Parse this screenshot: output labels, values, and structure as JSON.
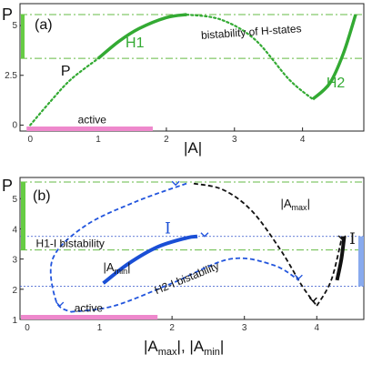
{
  "chart_data": [
    {
      "type": "line",
      "panel_label": "(a)",
      "ylabel": "P",
      "xlabel": "|A|",
      "xlim": [
        -0.15,
        4.9
      ],
      "ylim": [
        -0.3,
        6.1
      ],
      "xticks": [
        "0",
        "1",
        "2",
        "3",
        "4"
      ],
      "yticks": [
        "0",
        "2.5",
        "5"
      ],
      "hlines": [
        3.35,
        5.55
      ],
      "series": [
        {
          "name": "H1",
          "style": "solid",
          "color": "#33aa33",
          "x": [
            1.0,
            1.3,
            1.6,
            2.0,
            2.3
          ],
          "y": [
            3.35,
            4.2,
            4.85,
            5.4,
            5.55
          ]
        },
        {
          "name": "P",
          "style": "dotted",
          "color": "#33aa33",
          "x": [
            0.0,
            0.3,
            0.6,
            1.0
          ],
          "y": [
            0.0,
            1.2,
            2.3,
            3.35
          ]
        },
        {
          "name": "",
          "style": "dotted",
          "color": "#33aa33",
          "x": [
            2.3,
            2.8,
            3.3,
            3.8,
            4.15
          ],
          "y": [
            5.55,
            5.3,
            4.3,
            2.3,
            1.3
          ]
        },
        {
          "name": "H2",
          "style": "solid",
          "color": "#33aa33",
          "x": [
            4.15,
            4.4,
            4.6,
            4.78
          ],
          "y": [
            1.3,
            2.1,
            3.6,
            5.55
          ]
        }
      ],
      "annotations": {
        "h1": "H1",
        "p": "P",
        "h2": "H2",
        "bistability": "bistability of H-states",
        "active": "active"
      },
      "active_range": [
        0,
        1.8
      ],
      "bistability_y_range": [
        3.35,
        5.55
      ]
    },
    {
      "type": "line",
      "panel_label": "(b)",
      "ylabel": "P",
      "xlabel_main": "|A",
      "xlabel_sub1": "max",
      "xlabel_mid": "|, |A",
      "xlabel_sub2": "min",
      "xlabel_end": "|",
      "xlim": [
        0,
        4.65
      ],
      "ylim": [
        1,
        5.7
      ],
      "xticks": [
        "0",
        "1",
        "2",
        "3",
        "4"
      ],
      "yticks": [
        "1",
        "2",
        "3",
        "4",
        "5"
      ],
      "hlines_green": [
        3.3,
        5.55
      ],
      "hlines_blue": [
        3.75,
        2.1
      ],
      "series": [
        {
          "name": "|A_max|",
          "style": "dashed",
          "color": "#111111",
          "x": [
            2.3,
            2.7,
            3.1,
            3.5,
            3.8,
            4.0
          ],
          "y": [
            5.5,
            5.3,
            4.6,
            3.3,
            2.1,
            1.45
          ]
        },
        {
          "name": "|A_min|",
          "style": "solid",
          "color": "#1a4fd6",
          "x": [
            1.05,
            1.4,
            1.8,
            2.2,
            2.35
          ],
          "y": [
            2.2,
            2.85,
            3.4,
            3.7,
            3.75
          ]
        },
        {
          "name": "",
          "style": "dashed",
          "color": "#2255dd",
          "x": [
            2.2,
            1.5,
            0.8,
            0.35,
            0.4,
            0.6
          ],
          "y": [
            5.5,
            4.9,
            4.1,
            3.0,
            1.6,
            1.25
          ]
        },
        {
          "name": "",
          "style": "dashed",
          "color": "#2255dd",
          "x": [
            0.6,
            1.2,
            2.0,
            2.8,
            3.4,
            3.75
          ],
          "y": [
            1.25,
            1.45,
            2.2,
            3.0,
            2.8,
            2.3
          ]
        },
        {
          "name": "",
          "style": "dashed",
          "color": "#111111",
          "x": [
            4.0,
            4.2,
            4.35
          ],
          "y": [
            1.45,
            2.3,
            3.75
          ]
        },
        {
          "name": "",
          "style": "solid",
          "color": "#111111",
          "x": [
            4.28,
            4.34,
            4.38
          ],
          "y": [
            2.3,
            3.0,
            3.75
          ]
        }
      ],
      "annotations": {
        "amax_main": "|A",
        "amax_sub": "max",
        "amax_end": "|",
        "amin_main": "|A",
        "amin_sub": "min",
        "amin_end": "|",
        "h1i": "H1-I bistability",
        "h2i": "H2-I bistability",
        "i_left": "I",
        "i_right": "I",
        "active": "active",
        "pm_top": "⊥",
        "pm_mid": "⊥"
      },
      "active_range": [
        0,
        1.8
      ]
    }
  ]
}
